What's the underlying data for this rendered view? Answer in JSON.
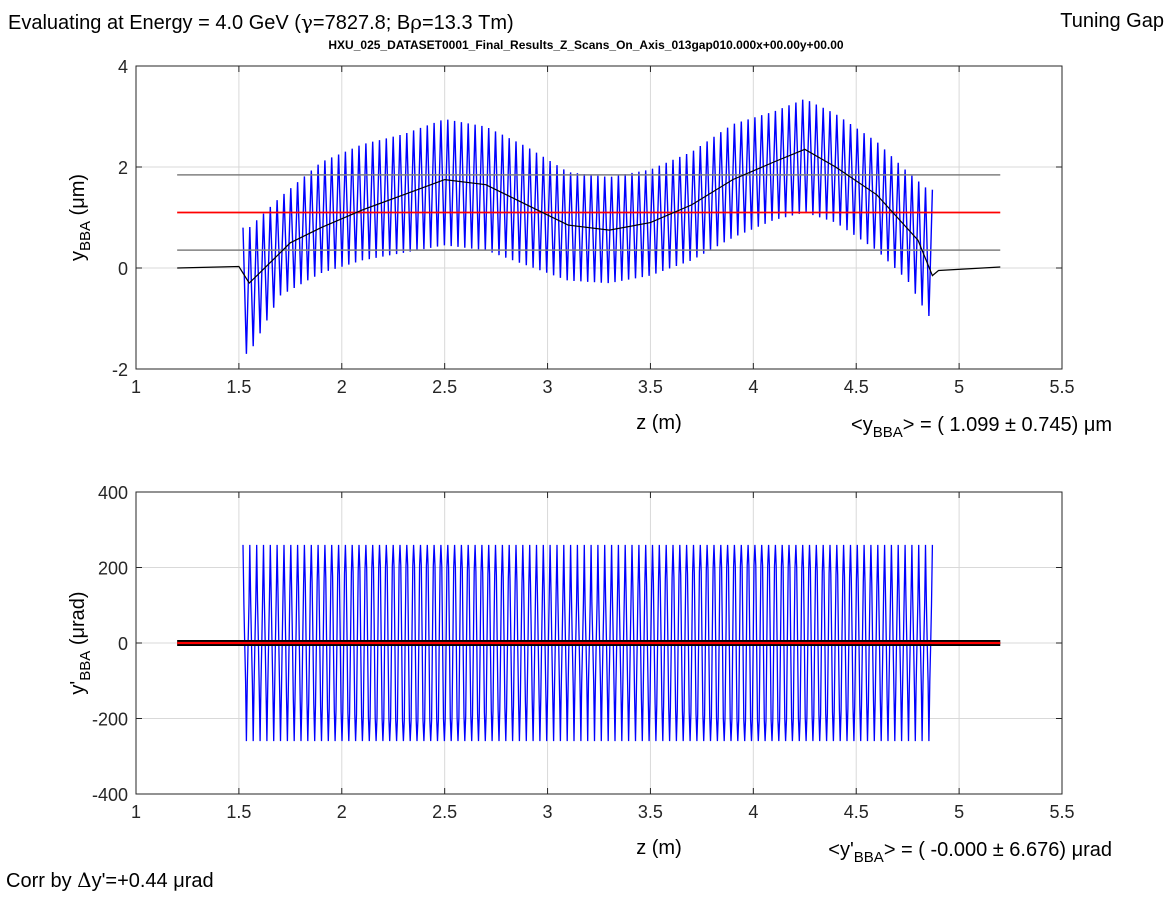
{
  "header": {
    "energy_label": "Evaluating at Energy =  4.0 GeV (",
    "gamma_symbol": "γ",
    "gamma_value": "=7827.8; B",
    "rho_symbol": "ρ",
    "brho_value": "=13.3 Tm)",
    "mode_label": "Tuning Gap",
    "dataset_title": "HXU_025_DATASET0001_Final_Results_Z_Scans_On_Axis_013gap010.000x+00.00y+00.00"
  },
  "footer": {
    "correction_label": "Corr by ",
    "correction_delta": "Δ",
    "correction_value": "y'=+0.44 μrad"
  },
  "colors": {
    "signal": "#0000ff",
    "mean_line": "#ff0000",
    "band_lines": "#808080",
    "trend_line": "#000000",
    "grid": "#d9d9d9",
    "axes": "#262626"
  },
  "chart_data": [
    {
      "type": "line",
      "xlabel": "z (m)",
      "ylabel": "y_BBA (μm)",
      "ylabel_main": "y",
      "ylabel_sub": "BBA",
      "ylabel_unit": "  (μm)",
      "xlim": [
        1,
        5.5
      ],
      "ylim": [
        -2,
        4
      ],
      "xticks": [
        "1",
        "1.5",
        "2",
        "2.5",
        "3",
        "3.5",
        "4",
        "4.5",
        "5",
        "5.5"
      ],
      "yticks": [
        "-2",
        "0",
        "2",
        "4"
      ],
      "grid": true,
      "stat_prefix": "<y",
      "stat_sub": "BBA",
      "stat_suffix": "> = (  1.099 ± 0.745) μm",
      "mean": 1.099,
      "std": 0.745,
      "mean_band": [
        0.354,
        1.844
      ],
      "reference_x_range": [
        1.2,
        5.2
      ],
      "undulator_range": [
        1.52,
        4.87
      ],
      "oscillation_periods": 101,
      "envelope": {
        "z": [
          1.55,
          1.7,
          1.9,
          2.1,
          2.3,
          2.5,
          2.7,
          2.9,
          3.1,
          3.3,
          3.5,
          3.7,
          3.9,
          4.1,
          4.25,
          4.4,
          4.6,
          4.75,
          4.85
        ],
        "upper": [
          0.8,
          1.4,
          2.1,
          2.45,
          2.65,
          2.95,
          2.8,
          2.4,
          1.9,
          1.8,
          1.95,
          2.3,
          2.85,
          3.1,
          3.35,
          3.05,
          2.5,
          1.9,
          1.55
        ],
        "lower": [
          -1.7,
          -0.55,
          -0.1,
          0.15,
          0.3,
          0.45,
          0.35,
          0.05,
          -0.25,
          -0.3,
          -0.15,
          0.15,
          0.6,
          0.95,
          1.1,
          0.9,
          0.35,
          -0.25,
          -0.95
        ]
      },
      "trend": {
        "z": [
          1.2,
          1.5,
          1.55,
          1.6,
          1.75,
          1.9,
          2.1,
          2.3,
          2.5,
          2.7,
          2.9,
          3.1,
          3.3,
          3.5,
          3.7,
          3.9,
          4.1,
          4.25,
          4.4,
          4.6,
          4.8,
          4.87,
          4.9,
          5.2
        ],
        "y": [
          0.0,
          0.03,
          -0.3,
          -0.1,
          0.5,
          0.8,
          1.15,
          1.45,
          1.75,
          1.65,
          1.25,
          0.85,
          0.75,
          0.9,
          1.25,
          1.75,
          2.1,
          2.35,
          2.0,
          1.45,
          0.55,
          -0.15,
          -0.05,
          0.02
        ]
      }
    },
    {
      "type": "line",
      "xlabel": "z (m)",
      "ylabel": "y'_BBA (μrad)",
      "ylabel_main": "y'",
      "ylabel_sub": "BBA",
      "ylabel_unit": "  (μrad)",
      "xlim": [
        1,
        5.5
      ],
      "ylim": [
        -400,
        400
      ],
      "xticks": [
        "1",
        "1.5",
        "2",
        "2.5",
        "3",
        "3.5",
        "4",
        "4.5",
        "5",
        "5.5"
      ],
      "yticks": [
        "-400",
        "-200",
        "0",
        "200",
        "400"
      ],
      "grid": true,
      "stat_prefix": "<y'",
      "stat_sub": "BBA",
      "stat_suffix": "> = ( -0.000 ± 6.676) μrad",
      "mean": -0.0,
      "std": 6.676,
      "reference_x_range": [
        1.2,
        5.2
      ],
      "undulator_range": [
        1.52,
        4.87
      ],
      "oscillation_periods": 101,
      "peak_amplitude": 260,
      "inner_amplitude_range": [
        100,
        205
      ]
    }
  ]
}
